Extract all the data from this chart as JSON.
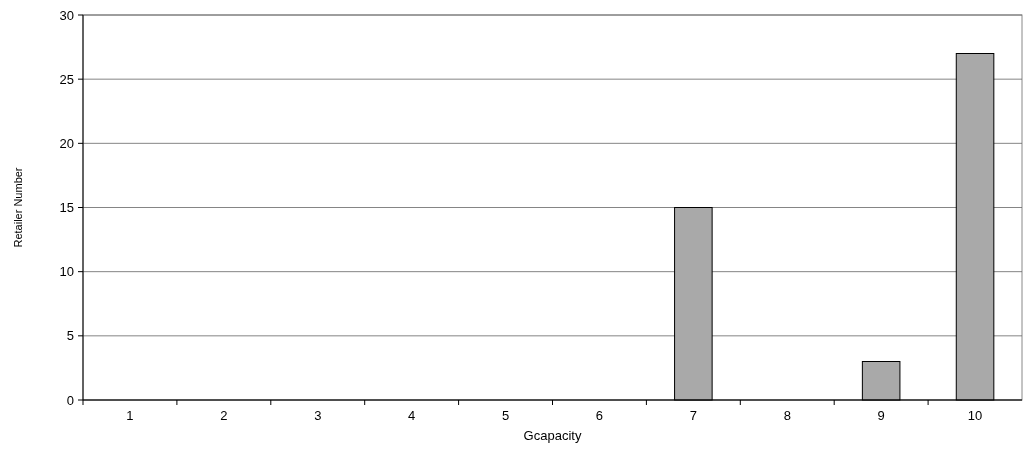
{
  "chart_data": {
    "type": "bar",
    "xlabel": "Gcapacity",
    "ylabel": "Retailer Number",
    "categories": [
      "1",
      "2",
      "3",
      "4",
      "5",
      "6",
      "7",
      "8",
      "9",
      "10"
    ],
    "values": [
      0,
      0,
      0,
      0,
      0,
      0,
      15,
      0,
      3,
      27
    ],
    "color": "#a9a9a9",
    "ylim": [
      0,
      30
    ],
    "yticks": [
      0,
      5,
      10,
      15,
      20,
      25,
      30
    ],
    "grid": "y"
  }
}
